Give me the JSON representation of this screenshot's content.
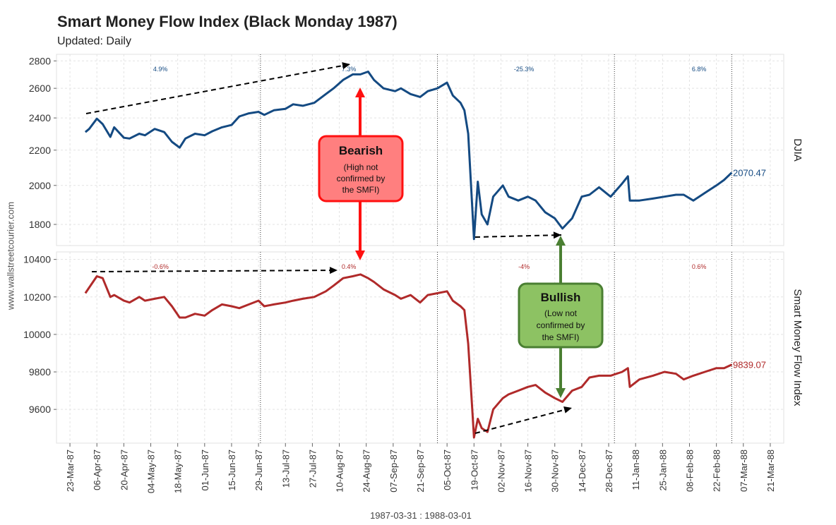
{
  "title": "Smart Money Flow Index (Black Monday 1987)",
  "subtitle": "Updated: Daily",
  "watermark": "www.wallstreetcourier.com",
  "x_caption": "1987-03-31 : 1988-03-01",
  "colors": {
    "djia": "#144a82",
    "smfi": "#b02a2a",
    "bearish_fill": "#ff7f7f",
    "bearish_border": "#ff1010",
    "bullish_fill": "#8dc263",
    "bullish_border": "#4a7f32"
  },
  "bearish": {
    "title": "Bearish",
    "line1": "(High not",
    "line2": "confirmed by",
    "line3": "the SMFI)"
  },
  "bullish": {
    "title": "Bullish",
    "line1": "(Low not",
    "line2": "confirmed by",
    "line3": "the SMFI)"
  },
  "chart_data": [
    {
      "type": "line",
      "panel_label": "DJIA",
      "last_value_label": "2070.47",
      "yticks": [
        1800,
        2000,
        2200,
        2400,
        2600,
        2800
      ],
      "period_changes": [
        "4.9%",
        "7.3%",
        "-25.3%",
        "6.8%"
      ],
      "series": [
        {
          "x": [
            "1987-03-31",
            "1987-04-02",
            "1987-04-06",
            "1987-04-09",
            "1987-04-13",
            "1987-04-15",
            "1987-04-20",
            "1987-04-23",
            "1987-04-28",
            "1987-05-01",
            "1987-05-06",
            "1987-05-11",
            "1987-05-15",
            "1987-05-19",
            "1987-05-22",
            "1987-05-27",
            "1987-06-01",
            "1987-06-05",
            "1987-06-10",
            "1987-06-15",
            "1987-06-19",
            "1987-06-24",
            "1987-06-29",
            "1987-07-02",
            "1987-07-07",
            "1987-07-13",
            "1987-07-17",
            "1987-07-22",
            "1987-07-28",
            "1987-08-03",
            "1987-08-07",
            "1987-08-12",
            "1987-08-17",
            "1987-08-21",
            "1987-08-25",
            "1987-08-28",
            "1987-09-02",
            "1987-09-08",
            "1987-09-11",
            "1987-09-16",
            "1987-09-21",
            "1987-09-25",
            "1987-09-30",
            "1987-10-05",
            "1987-10-08",
            "1987-10-12",
            "1987-10-14",
            "1987-10-16",
            "1987-10-19",
            "1987-10-21",
            "1987-10-23",
            "1987-10-26",
            "1987-10-29",
            "1987-11-03",
            "1987-11-06",
            "1987-11-11",
            "1987-11-16",
            "1987-11-20",
            "1987-11-25",
            "1987-11-30",
            "1987-12-04",
            "1987-12-09",
            "1987-12-14",
            "1987-12-18",
            "1987-12-23",
            "1987-12-29",
            "1988-01-04",
            "1988-01-07",
            "1988-01-08",
            "1988-01-13",
            "1988-01-20",
            "1988-01-26",
            "1988-02-01",
            "1988-02-05",
            "1988-02-10",
            "1988-02-16",
            "1988-02-22",
            "1988-02-26",
            "1988-03-01"
          ],
          "values": [
            2310,
            2330,
            2395,
            2360,
            2280,
            2340,
            2275,
            2270,
            2300,
            2290,
            2330,
            2310,
            2250,
            2215,
            2270,
            2300,
            2290,
            2315,
            2340,
            2355,
            2410,
            2430,
            2440,
            2420,
            2450,
            2460,
            2490,
            2480,
            2500,
            2560,
            2600,
            2660,
            2700,
            2700,
            2720,
            2660,
            2600,
            2580,
            2600,
            2560,
            2540,
            2580,
            2600,
            2640,
            2550,
            2500,
            2450,
            2300,
            1730,
            2020,
            1850,
            1800,
            1940,
            2000,
            1940,
            1920,
            1940,
            1920,
            1860,
            1830,
            1780,
            1830,
            1940,
            1950,
            1990,
            1940,
            2010,
            2050,
            1920,
            1920,
            1930,
            1940,
            1950,
            1950,
            1920,
            1960,
            2000,
            2030,
            2070.47
          ]
        }
      ]
    },
    {
      "type": "line",
      "panel_label": "Smart Money Flow Index",
      "last_value_label": "9839.07",
      "yticks": [
        9600,
        9800,
        10000,
        10200,
        10400
      ],
      "period_changes": [
        "-0.6%",
        "0.4%",
        "-4%",
        "0.6%"
      ],
      "series": [
        {
          "x": [
            "1987-03-31",
            "1987-04-02",
            "1987-04-06",
            "1987-04-09",
            "1987-04-13",
            "1987-04-15",
            "1987-04-20",
            "1987-04-23",
            "1987-04-28",
            "1987-05-01",
            "1987-05-06",
            "1987-05-11",
            "1987-05-15",
            "1987-05-19",
            "1987-05-22",
            "1987-05-27",
            "1987-06-01",
            "1987-06-05",
            "1987-06-10",
            "1987-06-15",
            "1987-06-19",
            "1987-06-24",
            "1987-06-29",
            "1987-07-02",
            "1987-07-07",
            "1987-07-13",
            "1987-07-17",
            "1987-07-22",
            "1987-07-28",
            "1987-08-03",
            "1987-08-07",
            "1987-08-12",
            "1987-08-17",
            "1987-08-21",
            "1987-08-25",
            "1987-08-28",
            "1987-09-02",
            "1987-09-08",
            "1987-09-11",
            "1987-09-16",
            "1987-09-21",
            "1987-09-25",
            "1987-09-30",
            "1987-10-05",
            "1987-10-08",
            "1987-10-12",
            "1987-10-14",
            "1987-10-16",
            "1987-10-19",
            "1987-10-21",
            "1987-10-23",
            "1987-10-26",
            "1987-10-29",
            "1987-11-03",
            "1987-11-06",
            "1987-11-11",
            "1987-11-16",
            "1987-11-20",
            "1987-11-25",
            "1987-11-30",
            "1987-12-04",
            "1987-12-09",
            "1987-12-14",
            "1987-12-18",
            "1987-12-23",
            "1987-12-29",
            "1988-01-04",
            "1988-01-07",
            "1988-01-08",
            "1988-01-13",
            "1988-01-20",
            "1988-01-26",
            "1988-02-01",
            "1988-02-05",
            "1988-02-10",
            "1988-02-16",
            "1988-02-22",
            "1988-02-26",
            "1988-03-01"
          ],
          "values": [
            10220,
            10250,
            10310,
            10300,
            10200,
            10210,
            10180,
            10170,
            10200,
            10180,
            10190,
            10200,
            10150,
            10090,
            10090,
            10110,
            10100,
            10130,
            10160,
            10150,
            10140,
            10160,
            10180,
            10150,
            10160,
            10170,
            10180,
            10190,
            10200,
            10230,
            10260,
            10300,
            10310,
            10320,
            10300,
            10280,
            10240,
            10210,
            10190,
            10210,
            10170,
            10210,
            10220,
            10230,
            10180,
            10150,
            10130,
            9950,
            9450,
            9550,
            9500,
            9480,
            9600,
            9660,
            9680,
            9700,
            9720,
            9730,
            9690,
            9660,
            9640,
            9700,
            9720,
            9770,
            9780,
            9780,
            9800,
            9820,
            9720,
            9760,
            9780,
            9800,
            9790,
            9760,
            9780,
            9800,
            9820,
            9820,
            9839.07
          ]
        }
      ]
    }
  ],
  "x_axis": {
    "ticks": [
      "23-Mar-87",
      "06-Apr-87",
      "20-Apr-87",
      "04-May-87",
      "18-May-87",
      "01-Jun-87",
      "15-Jun-87",
      "29-Jun-87",
      "13-Jul-87",
      "27-Jul-87",
      "10-Aug-87",
      "24-Aug-87",
      "07-Sep-87",
      "21-Sep-87",
      "05-Oct-87",
      "19-Oct-87",
      "02-Nov-87",
      "16-Nov-87",
      "30-Nov-87",
      "14-Dec-87",
      "28-Dec-87",
      "11-Jan-88",
      "25-Jan-88",
      "08-Feb-88",
      "22-Feb-88",
      "07-Mar-88",
      "21-Mar-88"
    ],
    "dotted_dividers": [
      "1987-06-30",
      "1987-09-30",
      "1987-12-31",
      "1988-03-01"
    ]
  }
}
